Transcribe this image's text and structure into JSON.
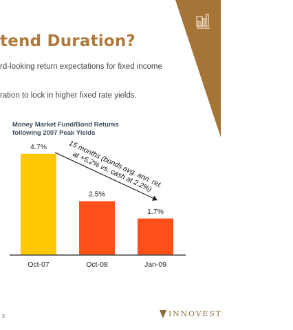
{
  "slide": {
    "title": "tend Duration?",
    "bullets": [
      "rd-looking return expectations for fixed income",
      "ration to lock in higher fixed rate yields."
    ],
    "page_number": "3",
    "brand": "INNOVEST",
    "banner_icon": "bar-chart-icon"
  },
  "colors": {
    "title": "#b07a3c",
    "banner": "#a67437",
    "bar_yellow": "#ffc800",
    "bar_orange": "#ff5019",
    "axis": "#444444"
  },
  "chart_data": {
    "type": "bar",
    "title_lines": [
      "Money Market Fund/Bond Returns",
      "following 2007 Peak Yields"
    ],
    "categories": [
      "Oct-07",
      "Oct-08",
      "Jan-09"
    ],
    "values": [
      4.7,
      2.5,
      1.7
    ],
    "value_labels": [
      "4.7%",
      "2.5%",
      "1.7%"
    ],
    "bar_colors": [
      "#ffc800",
      "#ff5019",
      "#ff5019"
    ],
    "ylim": [
      0,
      5.3
    ],
    "grid": false,
    "annotation": {
      "lines": [
        "15 months (bonds avg. ann. ret.",
        "at +5.2% vs. cash at 2.2%)"
      ],
      "from_category": "Oct-07",
      "to_category": "Jan-09"
    }
  }
}
